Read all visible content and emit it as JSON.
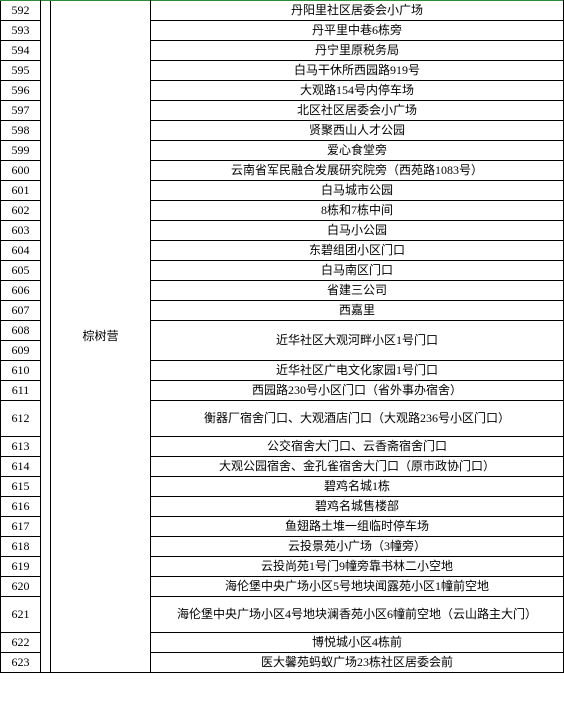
{
  "colors": {
    "border": "#000000",
    "top_border": "#2e8b3d",
    "background": "#ffffff",
    "text": "#000000"
  },
  "typography": {
    "font_family": "SimSun",
    "font_size_pt": 9
  },
  "label": "棕树营",
  "rows": [
    {
      "index": "592",
      "text": "丹阳里社区居委会小广场",
      "tall": false
    },
    {
      "index": "593",
      "text": "丹平里中巷6栋旁",
      "tall": false
    },
    {
      "index": "594",
      "text": "丹宁里原税务局",
      "tall": false
    },
    {
      "index": "595",
      "text": "白马干休所西园路919号",
      "tall": false
    },
    {
      "index": "596",
      "text": "大观路154号内停车场",
      "tall": false
    },
    {
      "index": "597",
      "text": "北区社区居委会小广场",
      "tall": false
    },
    {
      "index": "598",
      "text": "贤聚西山人才公园",
      "tall": false
    },
    {
      "index": "599",
      "text": "爱心食堂旁",
      "tall": false
    },
    {
      "index": "600",
      "text": "云南省军民融合发展研究院旁（西苑路1083号）",
      "tall": false
    },
    {
      "index": "601",
      "text": "白马城市公园",
      "tall": false
    },
    {
      "index": "602",
      "text": "8栋和7栋中间",
      "tall": false
    },
    {
      "index": "603",
      "text": "白马小公园",
      "tall": false
    },
    {
      "index": "604",
      "text": "东碧组团小区门口",
      "tall": false
    },
    {
      "index": "605",
      "text": "白马南区门口",
      "tall": false
    },
    {
      "index": "606",
      "text": "省建三公司",
      "tall": false
    },
    {
      "index": "607",
      "text": "西嘉里",
      "tall": false
    },
    {
      "index": "608",
      "text": "近华社区大观河畔小区1号门口",
      "tall": true,
      "extra_index": "609"
    },
    {
      "index": "610",
      "text": "近华社区广电文化家园1号门口",
      "tall": false
    },
    {
      "index": "611",
      "text": "西园路230号小区门口（省外事办宿舍）",
      "tall": false
    },
    {
      "index": "612",
      "text": "衡器厂宿舍门口、大观酒店门口（大观路236号小区门口）",
      "tall": true
    },
    {
      "index": "613",
      "text": "公交宿舍大门口、云香斋宿舍门口",
      "tall": false
    },
    {
      "index": "614",
      "text": "大观公园宿舍、金孔雀宿舍大门口（原市政协门口）",
      "tall": false
    },
    {
      "index": "615",
      "text": "碧鸡名城1栋",
      "tall": false
    },
    {
      "index": "616",
      "text": "碧鸡名城售楼部",
      "tall": false
    },
    {
      "index": "617",
      "text": "鱼翅路土堆一组临时停车场",
      "tall": false
    },
    {
      "index": "618",
      "text": "云投景苑小广场（3幢旁）",
      "tall": false
    },
    {
      "index": "619",
      "text": "云投尚苑1号门9幢旁靠书林二小空地",
      "tall": false
    },
    {
      "index": "620",
      "text": "海伦堡中央广场小区5号地块闻露苑小区1幢前空地",
      "tall": false
    },
    {
      "index": "621",
      "text": "海伦堡中央广场小区4号地块澜香苑小区6幢前空地（云山路主大门）",
      "tall": true
    },
    {
      "index": "622",
      "text": "博悦城小区4栋前",
      "tall": false
    },
    {
      "index": "623",
      "text": "医大馨苑蚂蚁广场23栋社区居委会前",
      "tall": false
    }
  ]
}
